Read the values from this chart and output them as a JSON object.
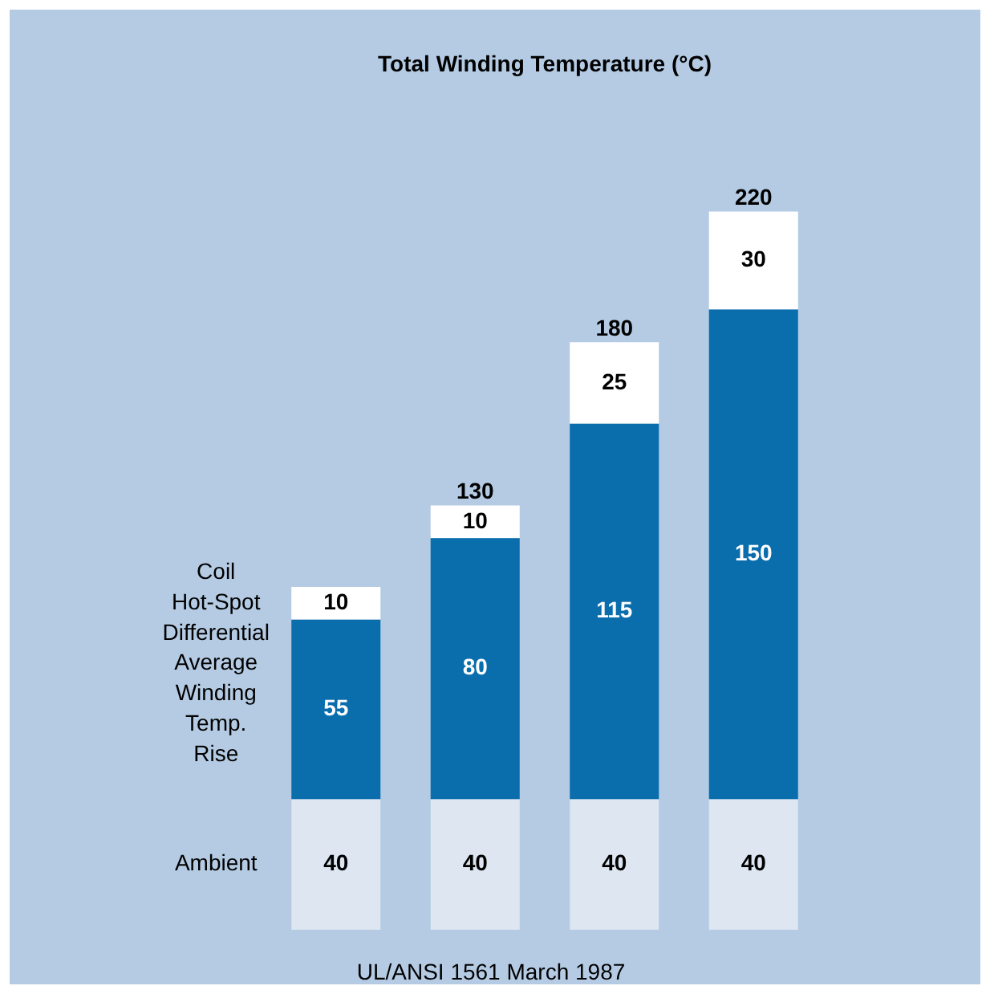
{
  "chart_data": {
    "type": "bar",
    "title": "Total Winding Temperature (°C)",
    "categories": [
      null,
      null,
      null,
      null
    ],
    "stacked": true,
    "data_labels": true,
    "legend": false,
    "series": [
      {
        "name": "Ambient",
        "color": "#dde6f1",
        "values": [
          40,
          40,
          40,
          40
        ]
      },
      {
        "name": "Average Winding Temp. Rise",
        "color": "#0a6ead",
        "values": [
          55,
          80,
          115,
          150
        ]
      },
      {
        "name": "Coil Hot-Spot Differential",
        "color": "#ffffff",
        "values": [
          10,
          10,
          25,
          30
        ]
      }
    ],
    "totals": [
      null,
      "130",
      "180",
      "220"
    ],
    "annotations": [
      "UL/ANSI 1561 March 1987"
    ]
  }
}
